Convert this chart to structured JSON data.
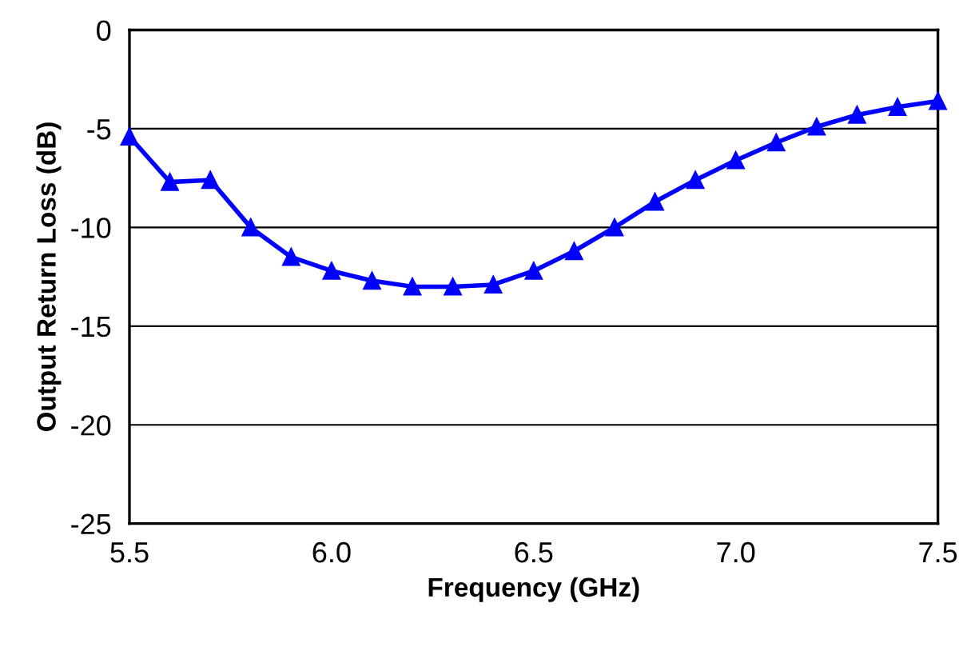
{
  "chart_data": {
    "type": "line",
    "xlabel": "Frequency (GHz)",
    "ylabel": "Output Return Loss (dB)",
    "x": [
      5.5,
      5.6,
      5.7,
      5.8,
      5.9,
      6.0,
      6.1,
      6.2,
      6.3,
      6.4,
      6.5,
      6.6,
      6.7,
      6.8,
      6.9,
      7.0,
      7.1,
      7.2,
      7.3,
      7.4,
      7.5
    ],
    "series": [
      {
        "color": "#0000ff",
        "values": [
          -5.4,
          -7.7,
          -7.6,
          -10.0,
          -11.5,
          -12.2,
          -12.7,
          -13.0,
          -13.0,
          -12.9,
          -12.2,
          -11.2,
          -10.0,
          -8.7,
          -7.6,
          -6.6,
          -5.7,
          -4.9,
          -4.3,
          -3.9,
          -3.6
        ]
      }
    ],
    "xlim": [
      5.5,
      7.5
    ],
    "xticks": [
      5.5,
      {
        "value": 6.0,
        "label": "6.0"
      },
      6.5,
      {
        "value": 7.0,
        "label": "7.0"
      },
      7.5
    ],
    "ylim": [
      -25,
      0
    ],
    "yticks": [
      -25,
      -20,
      -15,
      -10,
      -5,
      0
    ],
    "grid": "y",
    "marker": "triangle",
    "line_style": "solid"
  }
}
